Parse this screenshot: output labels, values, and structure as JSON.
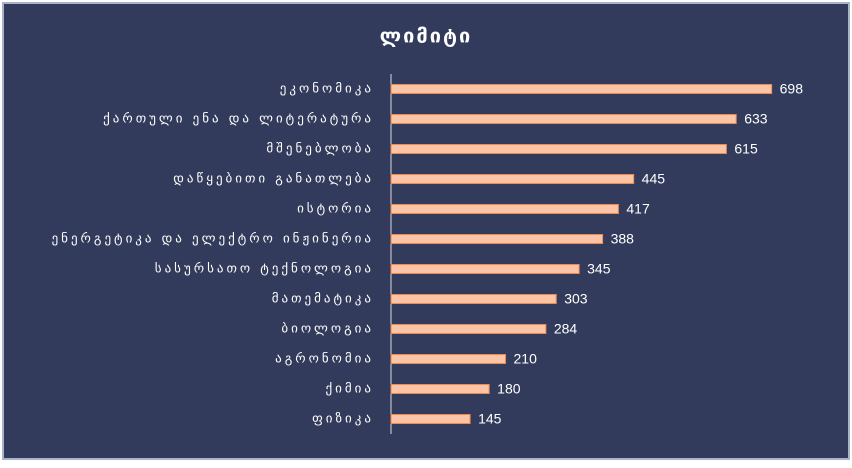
{
  "chart_data": {
    "type": "barh",
    "title": "ლიმიტი",
    "categories": [
      "ეკონომიკა",
      "ქართული ენა და ლიტერატურა",
      "მშენებლობა",
      "დაწყებითი განათლება",
      "ისტორია",
      "ენერგეტიკა და ელექტრო ინჟინერია",
      "სასურსათო ტექნოლოგია",
      "მათემატიკა",
      "ბიოლოგია",
      "აგრონომია",
      "ქიმია",
      "ფიზიკა"
    ],
    "values": [
      698,
      633,
      615,
      445,
      417,
      388,
      345,
      303,
      284,
      210,
      180,
      145
    ],
    "color": "#f9c4a8",
    "xlim": [
      0,
      750
    ]
  }
}
